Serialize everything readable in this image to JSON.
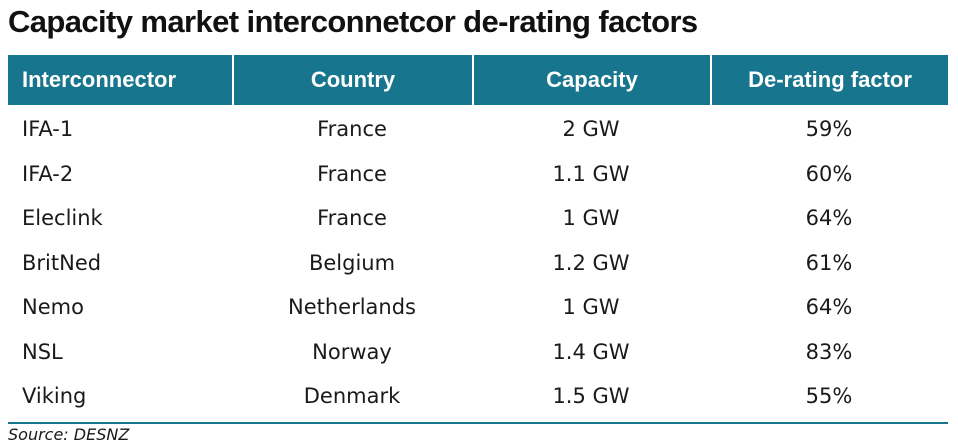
{
  "title": "Capacity market interconnetcor de-rating factors",
  "table": {
    "headers": [
      "Interconnector",
      "Country",
      "Capacity",
      "De-rating factor"
    ],
    "rows": [
      [
        "IFA-1",
        "France",
        "2 GW",
        "59%"
      ],
      [
        "IFA-2",
        "France",
        "1.1 GW",
        "60%"
      ],
      [
        "Eleclink",
        "France",
        "1 GW",
        "64%"
      ],
      [
        "BritNed",
        "Belgium",
        "1.2 GW",
        "61%"
      ],
      [
        "Nemo",
        "Netherlands",
        "1 GW",
        "64%"
      ],
      [
        "NSL",
        "Norway",
        "1.4 GW",
        "83%"
      ],
      [
        "Viking",
        "Denmark",
        "1.5 GW",
        "55%"
      ]
    ]
  },
  "source": "Source: DESNZ",
  "colors": {
    "header_background": "#17758d",
    "header_text": "#ffffff",
    "rule": "#17758d"
  }
}
